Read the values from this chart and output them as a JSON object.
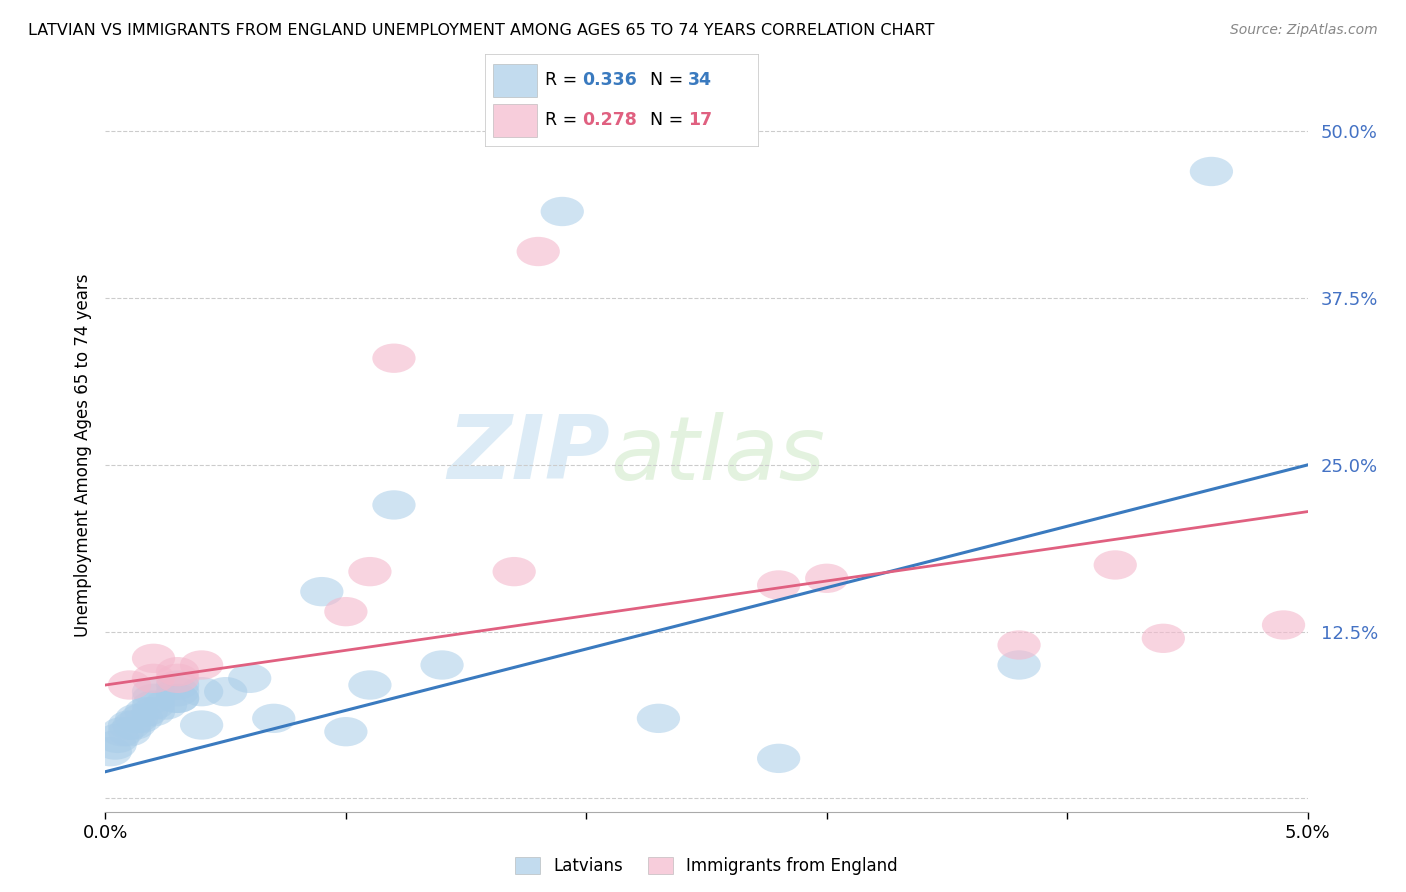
{
  "title": "LATVIAN VS IMMIGRANTS FROM ENGLAND UNEMPLOYMENT AMONG AGES 65 TO 74 YEARS CORRELATION CHART",
  "source": "Source: ZipAtlas.com",
  "ylabel": "Unemployment Among Ages 65 to 74 years",
  "y_ticks": [
    0.0,
    0.125,
    0.25,
    0.375,
    0.5
  ],
  "y_tick_labels": [
    "",
    "12.5%",
    "25.0%",
    "37.5%",
    "50.0%"
  ],
  "x_lim": [
    0.0,
    0.05
  ],
  "y_lim": [
    -0.01,
    0.525
  ],
  "watermark_zip": "ZIP",
  "watermark_atlas": "atlas",
  "blue_color": "#a8cce8",
  "pink_color": "#f4b8cc",
  "blue_line_color": "#3a7abf",
  "pink_line_color": "#e06080",
  "blue_r": "0.336",
  "blue_n": "34",
  "pink_r": "0.278",
  "pink_n": "17",
  "blue_label": "Latvians",
  "pink_label": "Immigrants from England",
  "latvian_x": [
    0.0002,
    0.0004,
    0.0005,
    0.0007,
    0.001,
    0.001,
    0.0012,
    0.0013,
    0.0015,
    0.0017,
    0.002,
    0.002,
    0.002,
    0.002,
    0.0025,
    0.003,
    0.003,
    0.003,
    0.003,
    0.004,
    0.004,
    0.005,
    0.006,
    0.007,
    0.009,
    0.01,
    0.011,
    0.012,
    0.014,
    0.019,
    0.023,
    0.028,
    0.038,
    0.046
  ],
  "latvian_y": [
    0.035,
    0.04,
    0.045,
    0.05,
    0.05,
    0.055,
    0.055,
    0.06,
    0.06,
    0.065,
    0.065,
    0.07,
    0.075,
    0.08,
    0.07,
    0.075,
    0.075,
    0.08,
    0.085,
    0.08,
    0.055,
    0.08,
    0.09,
    0.06,
    0.155,
    0.05,
    0.085,
    0.22,
    0.1,
    0.44,
    0.06,
    0.03,
    0.1,
    0.47
  ],
  "england_x": [
    0.001,
    0.002,
    0.002,
    0.003,
    0.003,
    0.004,
    0.01,
    0.011,
    0.012,
    0.017,
    0.018,
    0.028,
    0.03,
    0.038,
    0.042,
    0.044,
    0.049
  ],
  "england_y": [
    0.085,
    0.09,
    0.105,
    0.09,
    0.095,
    0.1,
    0.14,
    0.17,
    0.33,
    0.17,
    0.41,
    0.16,
    0.165,
    0.115,
    0.175,
    0.12,
    0.13
  ],
  "blue_line_x0": 0.0,
  "blue_line_y0": 0.02,
  "blue_line_x1": 0.05,
  "blue_line_y1": 0.25,
  "pink_line_x0": 0.0,
  "pink_line_y0": 0.085,
  "pink_line_x1": 0.05,
  "pink_line_y1": 0.215
}
